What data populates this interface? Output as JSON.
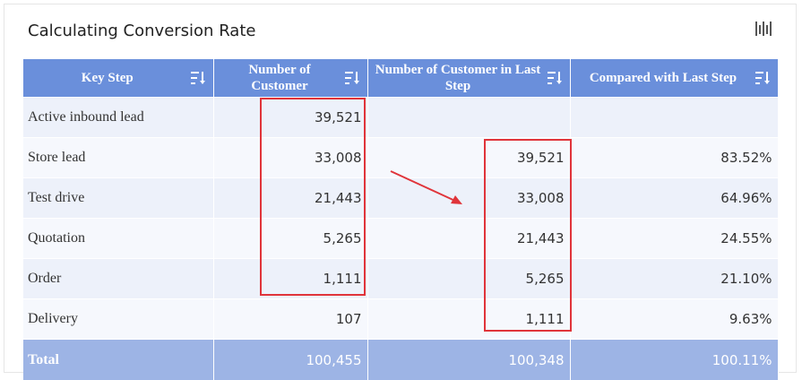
{
  "header": {
    "title": "Calculating Conversion Rate"
  },
  "table": {
    "columns": [
      "Key Step",
      "Number of Customer",
      "Number of Customer in Last Step",
      "Compared with Last Step"
    ],
    "rows": [
      [
        "Active inbound lead",
        "39,521",
        null,
        null
      ],
      [
        "Store lead",
        "33,008",
        "39,521",
        "83.52%"
      ],
      [
        "Test drive",
        "21,443",
        "33,008",
        "64.96%"
      ],
      [
        "Quotation",
        "5,265",
        "21,443",
        "24.55%"
      ],
      [
        "Order",
        "1,111",
        "5,265",
        "21.10%"
      ],
      [
        "Delivery",
        "107",
        "1,111",
        "9.63%"
      ]
    ],
    "total": [
      "Total",
      "100,455",
      "100,348",
      "100.11%"
    ]
  }
}
